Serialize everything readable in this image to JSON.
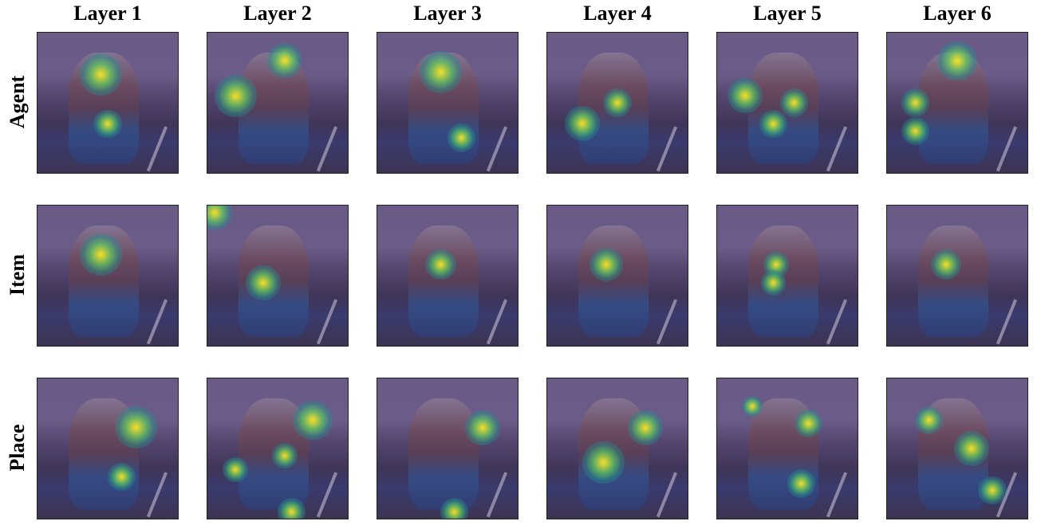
{
  "columns": [
    "Layer 1",
    "Layer 2",
    "Layer 3",
    "Layer 4",
    "Layer 5",
    "Layer 6"
  ],
  "rows": [
    "Agent",
    "Item",
    "Place"
  ]
}
